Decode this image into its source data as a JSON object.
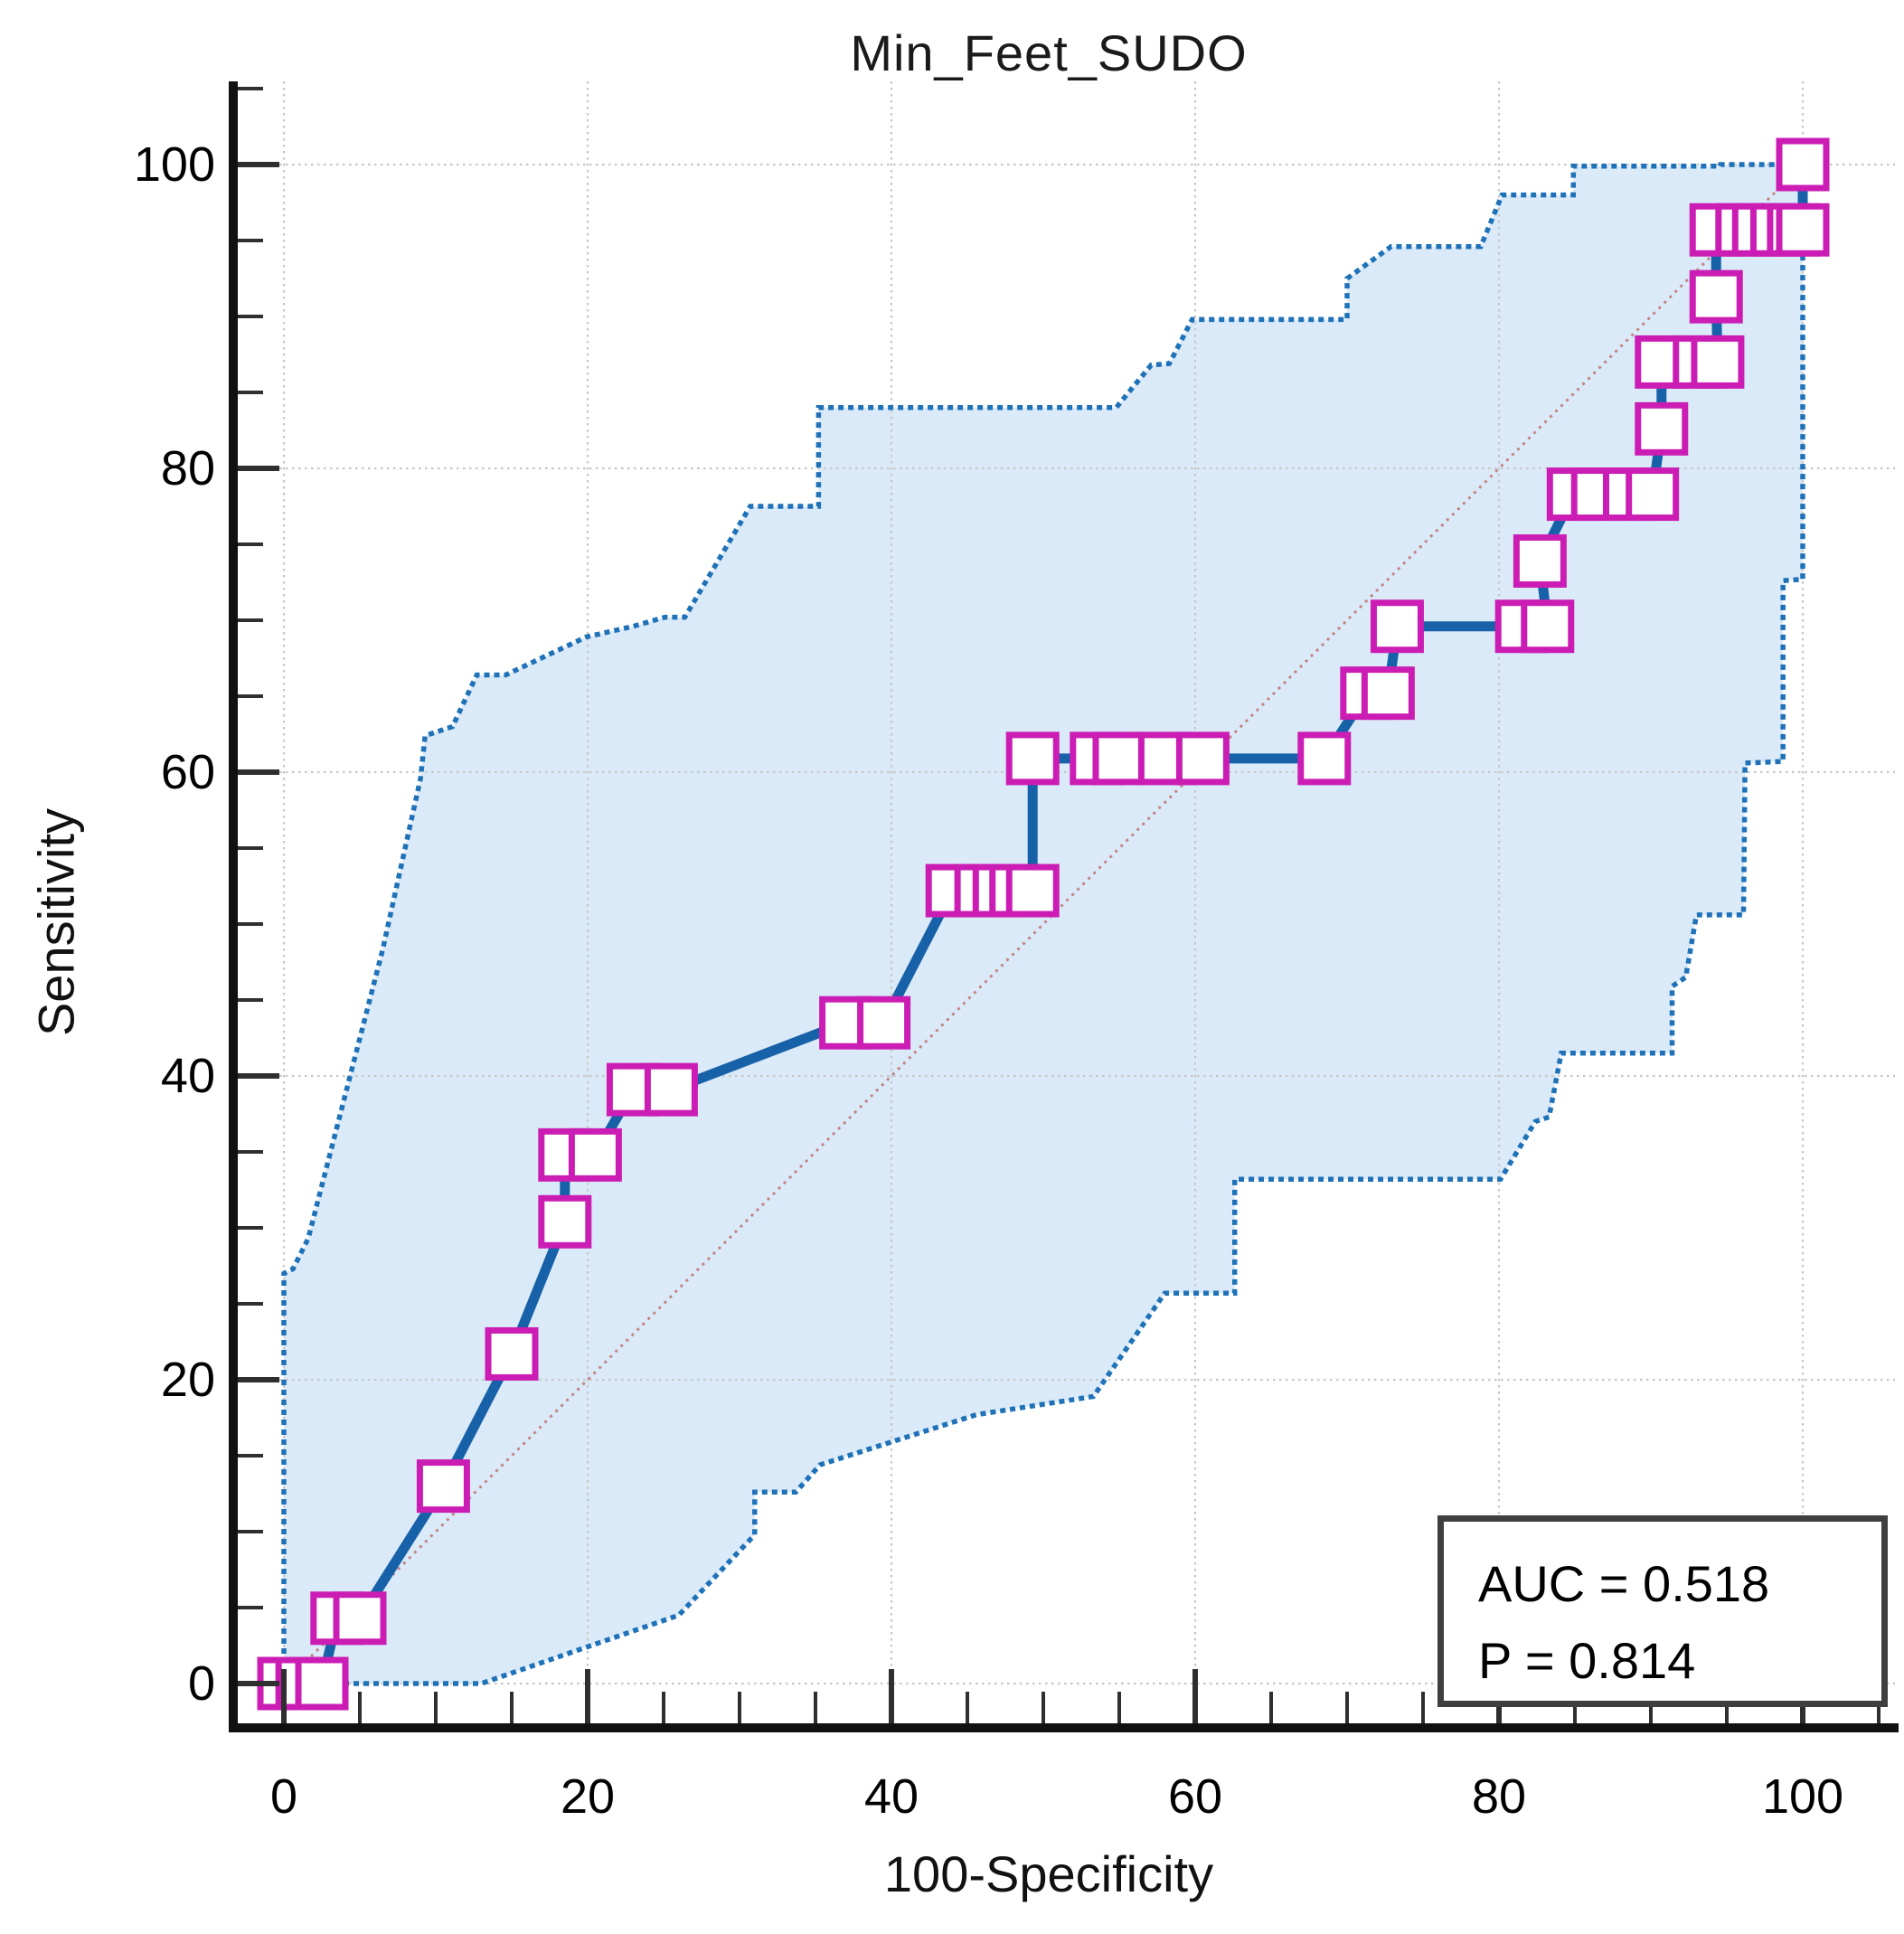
{
  "chart_data": {
    "type": "line",
    "title": "Min_Feet_SUDO",
    "xlabel": "100-Specificity",
    "ylabel": "Sensitivity",
    "xlim": [
      0,
      100
    ],
    "ylim": [
      0,
      100
    ],
    "grid": true,
    "x_major_ticks": [
      0,
      20,
      40,
      60,
      80,
      100
    ],
    "y_major_ticks": [
      0,
      20,
      40,
      60,
      80,
      100
    ],
    "minor_tick_step": 5,
    "annotation": {
      "auc": "AUC = 0.518",
      "p": "P = 0.814"
    },
    "series": [
      {
        "name": "ROC curve",
        "marker": "open-square",
        "points": [
          [
            0,
            0
          ],
          [
            1.2,
            0
          ],
          [
            2.5,
            0
          ],
          [
            3.5,
            4.3
          ],
          [
            5,
            4.3
          ],
          [
            10.5,
            13
          ],
          [
            15,
            21.7
          ],
          [
            18.5,
            30.4
          ],
          [
            18.5,
            34.8
          ],
          [
            20.5,
            34.8
          ],
          [
            23,
            39.1
          ],
          [
            25.5,
            39.1
          ],
          [
            37,
            43.5
          ],
          [
            39.5,
            43.5
          ],
          [
            44,
            52.2
          ],
          [
            45.9,
            52.2
          ],
          [
            47.1,
            52.2
          ],
          [
            48.2,
            52.2
          ],
          [
            49.3,
            52.2
          ],
          [
            49.3,
            60.9
          ],
          [
            53.5,
            60.9
          ],
          [
            55,
            60.9
          ],
          [
            58,
            60.9
          ],
          [
            60.5,
            60.9
          ],
          [
            68.5,
            60.9
          ],
          [
            71.3,
            65.2
          ],
          [
            72.7,
            65.2
          ],
          [
            73.3,
            69.6
          ],
          [
            81.5,
            69.6
          ],
          [
            83.2,
            69.6
          ],
          [
            82.7,
            73.9
          ],
          [
            84.9,
            78.3
          ],
          [
            86.5,
            78.3
          ],
          [
            88.6,
            78.3
          ],
          [
            90.1,
            78.3
          ],
          [
            90.7,
            82.6
          ],
          [
            90.7,
            87
          ],
          [
            93.2,
            87
          ],
          [
            94.4,
            87
          ],
          [
            94.3,
            91.3
          ],
          [
            94.3,
            95.7
          ],
          [
            96,
            95.7
          ],
          [
            97.1,
            95.7
          ],
          [
            98.3,
            95.7
          ],
          [
            99.4,
            95.7
          ],
          [
            100,
            95.7
          ],
          [
            100,
            100
          ]
        ]
      },
      {
        "name": "95% CI upper bound",
        "points": [
          [
            0,
            0
          ],
          [
            0,
            27
          ],
          [
            0.6,
            27.3
          ],
          [
            1.6,
            29.3
          ],
          [
            6.5,
            48.3
          ],
          [
            9,
            59.6
          ],
          [
            9.3,
            62.4
          ],
          [
            11.1,
            63
          ],
          [
            12.7,
            66.4
          ],
          [
            14.6,
            66.4
          ],
          [
            19.9,
            68.9
          ],
          [
            23,
            69.6
          ],
          [
            25.1,
            70.2
          ],
          [
            26.4,
            70.2
          ],
          [
            30.7,
            77.5
          ],
          [
            35.2,
            77.5
          ],
          [
            35.2,
            84
          ],
          [
            54.8,
            84
          ],
          [
            57.1,
            86.8
          ],
          [
            58.3,
            86.9
          ],
          [
            59.8,
            89.8
          ],
          [
            70,
            89.8
          ],
          [
            70,
            92.5
          ],
          [
            72.9,
            94.6
          ],
          [
            78.8,
            94.6
          ],
          [
            80.2,
            98
          ],
          [
            84.9,
            98
          ],
          [
            84.9,
            99.9
          ],
          [
            94.6,
            99.9
          ],
          [
            94.6,
            100
          ],
          [
            100,
            100
          ]
        ]
      },
      {
        "name": "95% CI lower bound",
        "points": [
          [
            0,
            0
          ],
          [
            13,
            0
          ],
          [
            26,
            4.5
          ],
          [
            31,
            9.8
          ],
          [
            31,
            12.6
          ],
          [
            33.7,
            12.6
          ],
          [
            35.3,
            14.4
          ],
          [
            45.6,
            17.7
          ],
          [
            53.3,
            18.9
          ],
          [
            58,
            25.7
          ],
          [
            62.6,
            25.7
          ],
          [
            62.6,
            33.2
          ],
          [
            80.1,
            33.2
          ],
          [
            82.4,
            37
          ],
          [
            83.3,
            37.3
          ],
          [
            84.1,
            41.5
          ],
          [
            91.4,
            41.5
          ],
          [
            91.4,
            45.9
          ],
          [
            92.3,
            46.5
          ],
          [
            93,
            50.6
          ],
          [
            96.1,
            50.6
          ],
          [
            96.2,
            60.6
          ],
          [
            98.7,
            60.7
          ],
          [
            98.7,
            72.6
          ],
          [
            100,
            72.7
          ],
          [
            100,
            100
          ]
        ]
      },
      {
        "name": "reference diagonal",
        "points": [
          [
            0,
            0
          ],
          [
            100,
            100
          ]
        ]
      }
    ],
    "colors": {
      "roc_line": "#1761a8",
      "marker_edge": "#cb1db4",
      "marker_fill": "#ffffff",
      "band_fill": "#dbeaf8",
      "band_edge": "#1f72b8",
      "diagonal": "#c28585",
      "grid": "#c6c6c6",
      "axis": "#111111",
      "tick": "#2f2f2f",
      "text": "#000000"
    },
    "legend": "none"
  }
}
